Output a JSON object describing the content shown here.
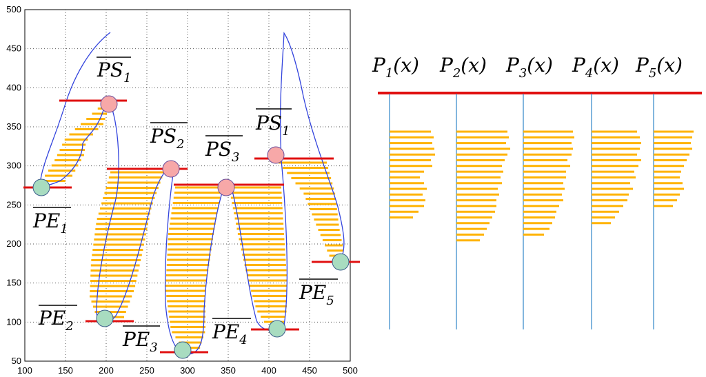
{
  "axes": {
    "x_ticks": [
      "100",
      "150",
      "200",
      "250",
      "300",
      "350",
      "400",
      "450",
      "500"
    ],
    "y_ticks": [
      "50",
      "100",
      "150",
      "200",
      "250",
      "300",
      "350",
      "400",
      "450",
      "500"
    ],
    "xlim": [
      100,
      500
    ],
    "ylim": [
      50,
      500
    ]
  },
  "colors": {
    "stroke": "#ffb300",
    "outline": "#3344dd",
    "cut_line": "#e01010",
    "start_marker": "#f7a8a8",
    "end_marker": "#a8dcc0",
    "profile_axis": "#2f86c8"
  },
  "labels": {
    "ps1a": {
      "base": "PS",
      "sub": "1"
    },
    "ps2": {
      "base": "PS",
      "sub": "2"
    },
    "ps3": {
      "base": "PS",
      "sub": "3"
    },
    "ps1b": {
      "base": "PS",
      "sub": "1"
    },
    "pe1": {
      "base": "PE",
      "sub": "1"
    },
    "pe2": {
      "base": "PE",
      "sub": "2"
    },
    "pe3": {
      "base": "PE",
      "sub": "3"
    },
    "pe4": {
      "base": "PE",
      "sub": "4"
    },
    "pe5": {
      "base": "PE",
      "sub": "5"
    }
  },
  "profiles": [
    {
      "base": "P",
      "sub": "1",
      "arg": "(x)"
    },
    {
      "base": "P",
      "sub": "2",
      "arg": "(x)"
    },
    {
      "base": "P",
      "sub": "3",
      "arg": "(x)"
    },
    {
      "base": "P",
      "sub": "4",
      "arg": "(x)"
    },
    {
      "base": "P",
      "sub": "5",
      "arg": "(x)"
    }
  ]
}
